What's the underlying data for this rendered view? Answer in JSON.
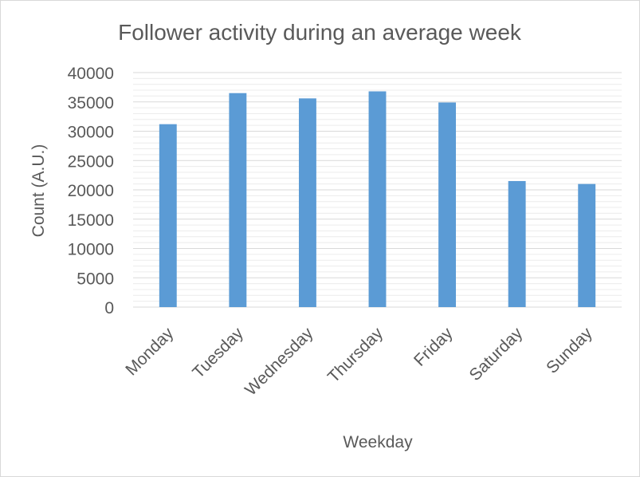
{
  "chart_data": {
    "type": "bar",
    "title": "Follower activity during an average week",
    "xlabel": "Weekday",
    "ylabel": "Count (A.U.)",
    "categories": [
      "Monday",
      "Tuesday",
      "Wednesday",
      "Thursday",
      "Friday",
      "Saturday",
      "Sunday"
    ],
    "values": [
      31200,
      36500,
      35600,
      36800,
      34900,
      21500,
      21000
    ],
    "ylim": [
      0,
      40000
    ],
    "yticks": [
      "0",
      "5000",
      "10000",
      "15000",
      "20000",
      "25000",
      "30000",
      "35000",
      "40000"
    ],
    "grid": true,
    "minor_grid": true,
    "legend": "none",
    "colors": {
      "bar": "#5b9bd5",
      "major_grid": "#d9d9d9",
      "minor_grid": "#ececec",
      "text": "#595959"
    }
  }
}
